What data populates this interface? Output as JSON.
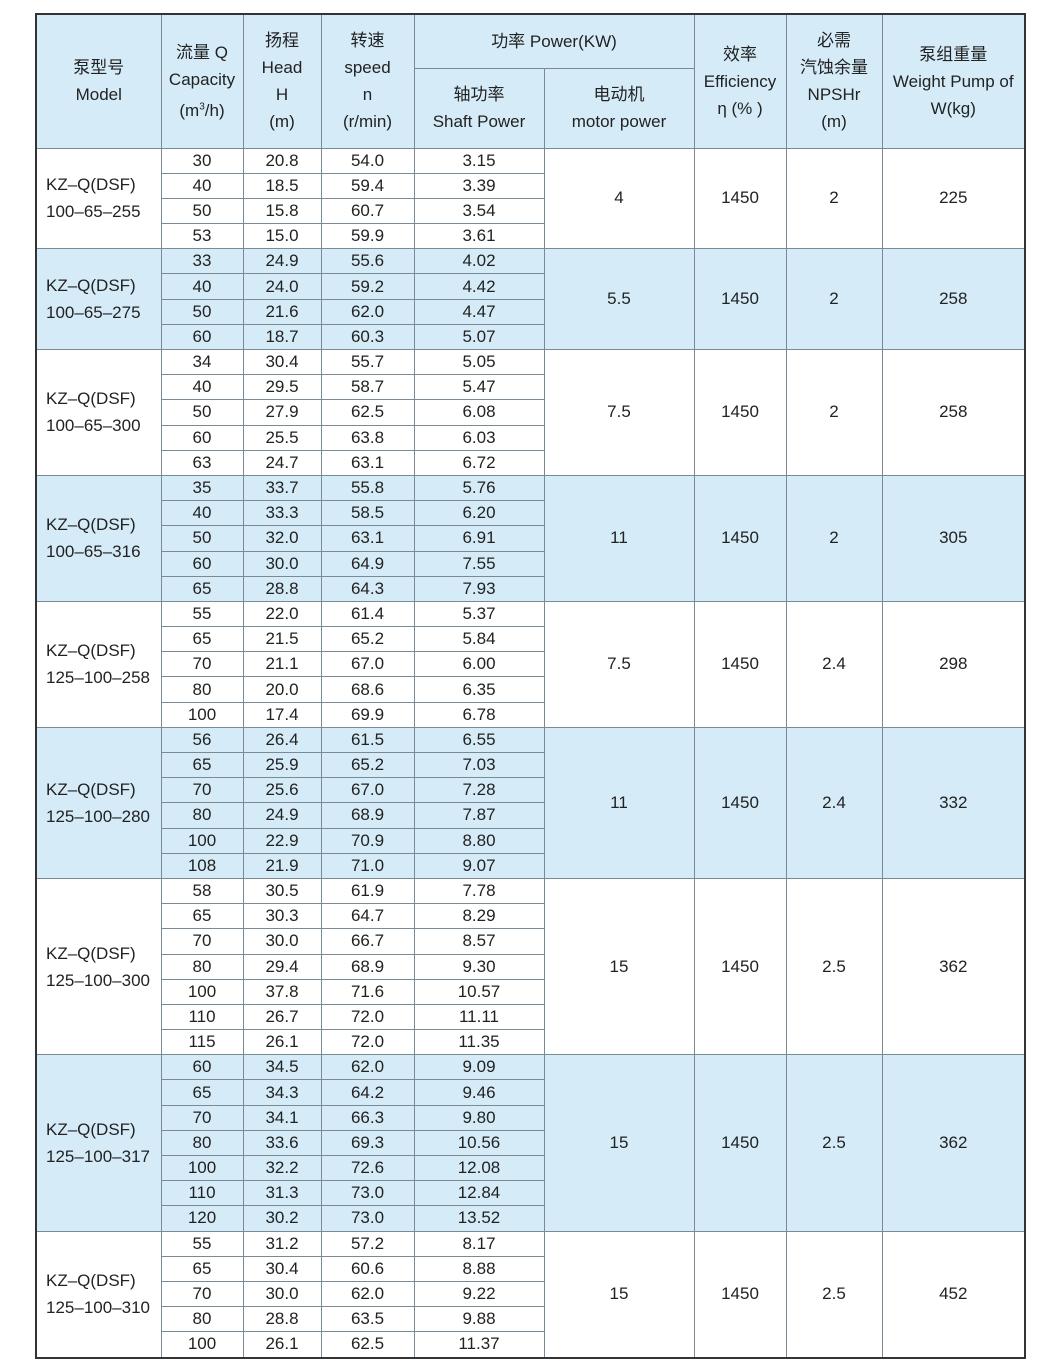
{
  "header": {
    "model": [
      "泵型号",
      "Model"
    ],
    "capacity": [
      "流量 Q",
      "Capacity",
      "(m³/h)"
    ],
    "head": [
      "扬程",
      "Head",
      "H",
      "(m)"
    ],
    "speed": [
      "转速",
      "speed",
      "n",
      "(r/min)"
    ],
    "power": "功率 Power(KW)",
    "shaft_power": [
      "轴功率",
      "Shaft Power"
    ],
    "motor_power": [
      "电动机",
      "motor power"
    ],
    "efficiency": [
      "效率",
      "Efficiency",
      "η (% )"
    ],
    "npshr": [
      "必需",
      "汽蚀余量",
      "NPSHr",
      "(m)"
    ],
    "weight": [
      "泵组重量",
      "Weight Pump of",
      "W(kg)"
    ]
  },
  "colors": {
    "header_bg": "#d5ecf8",
    "stripe_bg": "#d5ecf8"
  },
  "groups": [
    {
      "model": [
        "KZ–Q(DSF)",
        "100–65–255"
      ],
      "motor": "4",
      "efficiency": "1450",
      "npshr": "2",
      "weight": "225",
      "rows": [
        [
          "30",
          "20.8",
          "54.0",
          "3.15"
        ],
        [
          "40",
          "18.5",
          "59.4",
          "3.39"
        ],
        [
          "50",
          "15.8",
          "60.7",
          "3.54"
        ],
        [
          "53",
          "15.0",
          "59.9",
          "3.61"
        ]
      ]
    },
    {
      "model": [
        "KZ–Q(DSF)",
        "100–65–275"
      ],
      "motor": "5.5",
      "efficiency": "1450",
      "npshr": "2",
      "weight": "258",
      "rows": [
        [
          "33",
          "24.9",
          "55.6",
          "4.02"
        ],
        [
          "40",
          "24.0",
          "59.2",
          "4.42"
        ],
        [
          "50",
          "21.6",
          "62.0",
          "4.47"
        ],
        [
          "60",
          "18.7",
          "60.3",
          "5.07"
        ]
      ]
    },
    {
      "model": [
        "KZ–Q(DSF)",
        "100–65–300"
      ],
      "motor": "7.5",
      "efficiency": "1450",
      "npshr": "2",
      "weight": "258",
      "rows": [
        [
          "34",
          "30.4",
          "55.7",
          "5.05"
        ],
        [
          "40",
          "29.5",
          "58.7",
          "5.47"
        ],
        [
          "50",
          "27.9",
          "62.5",
          "6.08"
        ],
        [
          "60",
          "25.5",
          "63.8",
          "6.03"
        ],
        [
          "63",
          "24.7",
          "63.1",
          "6.72"
        ]
      ]
    },
    {
      "model": [
        "KZ–Q(DSF)",
        "100–65–316"
      ],
      "motor": "11",
      "efficiency": "1450",
      "npshr": "2",
      "weight": "305",
      "rows": [
        [
          "35",
          "33.7",
          "55.8",
          "5.76"
        ],
        [
          "40",
          "33.3",
          "58.5",
          "6.20"
        ],
        [
          "50",
          "32.0",
          "63.1",
          "6.91"
        ],
        [
          "60",
          "30.0",
          "64.9",
          "7.55"
        ],
        [
          "65",
          "28.8",
          "64.3",
          "7.93"
        ]
      ]
    },
    {
      "model": [
        "KZ–Q(DSF)",
        "125–100–258"
      ],
      "motor": "7.5",
      "efficiency": "1450",
      "npshr": "2.4",
      "weight": "298",
      "rows": [
        [
          "55",
          "22.0",
          "61.4",
          "5.37"
        ],
        [
          "65",
          "21.5",
          "65.2",
          "5.84"
        ],
        [
          "70",
          "21.1",
          "67.0",
          "6.00"
        ],
        [
          "80",
          "20.0",
          "68.6",
          "6.35"
        ],
        [
          "100",
          "17.4",
          "69.9",
          "6.78"
        ]
      ]
    },
    {
      "model": [
        "KZ–Q(DSF)",
        "125–100–280"
      ],
      "motor": "11",
      "efficiency": "1450",
      "npshr": "2.4",
      "weight": "332",
      "rows": [
        [
          "56",
          "26.4",
          "61.5",
          "6.55"
        ],
        [
          "65",
          "25.9",
          "65.2",
          "7.03"
        ],
        [
          "70",
          "25.6",
          "67.0",
          "7.28"
        ],
        [
          "80",
          "24.9",
          "68.9",
          "7.87"
        ],
        [
          "100",
          "22.9",
          "70.9",
          "8.80"
        ],
        [
          "108",
          "21.9",
          "71.0",
          "9.07"
        ]
      ]
    },
    {
      "model": [
        "KZ–Q(DSF)",
        "125–100–300"
      ],
      "motor": "15",
      "efficiency": "1450",
      "npshr": "2.5",
      "weight": "362",
      "rows": [
        [
          "58",
          "30.5",
          "61.9",
          "7.78"
        ],
        [
          "65",
          "30.3",
          "64.7",
          "8.29"
        ],
        [
          "70",
          "30.0",
          "66.7",
          "8.57"
        ],
        [
          "80",
          "29.4",
          "68.9",
          "9.30"
        ],
        [
          "100",
          "37.8",
          "71.6",
          "10.57"
        ],
        [
          "110",
          "26.7",
          "72.0",
          "11.11"
        ],
        [
          "115",
          "26.1",
          "72.0",
          "11.35"
        ]
      ]
    },
    {
      "model": [
        "KZ–Q(DSF)",
        "125–100–317"
      ],
      "motor": "15",
      "efficiency": "1450",
      "npshr": "2.5",
      "weight": "362",
      "rows": [
        [
          "60",
          "34.5",
          "62.0",
          "9.09"
        ],
        [
          "65",
          "34.3",
          "64.2",
          "9.46"
        ],
        [
          "70",
          "34.1",
          "66.3",
          "9.80"
        ],
        [
          "80",
          "33.6",
          "69.3",
          "10.56"
        ],
        [
          "100",
          "32.2",
          "72.6",
          "12.08"
        ],
        [
          "110",
          "31.3",
          "73.0",
          "12.84"
        ],
        [
          "120",
          "30.2",
          "73.0",
          "13.52"
        ]
      ]
    },
    {
      "model": [
        "KZ–Q(DSF)",
        "125–100–310"
      ],
      "motor": "15",
      "efficiency": "1450",
      "npshr": "2.5",
      "weight": "452",
      "rows": [
        [
          "55",
          "31.2",
          "57.2",
          "8.17"
        ],
        [
          "65",
          "30.4",
          "60.6",
          "8.88"
        ],
        [
          "70",
          "30.0",
          "62.0",
          "9.22"
        ],
        [
          "80",
          "28.8",
          "63.5",
          "9.88"
        ],
        [
          "100",
          "26.1",
          "62.5",
          "11.37"
        ]
      ]
    }
  ]
}
